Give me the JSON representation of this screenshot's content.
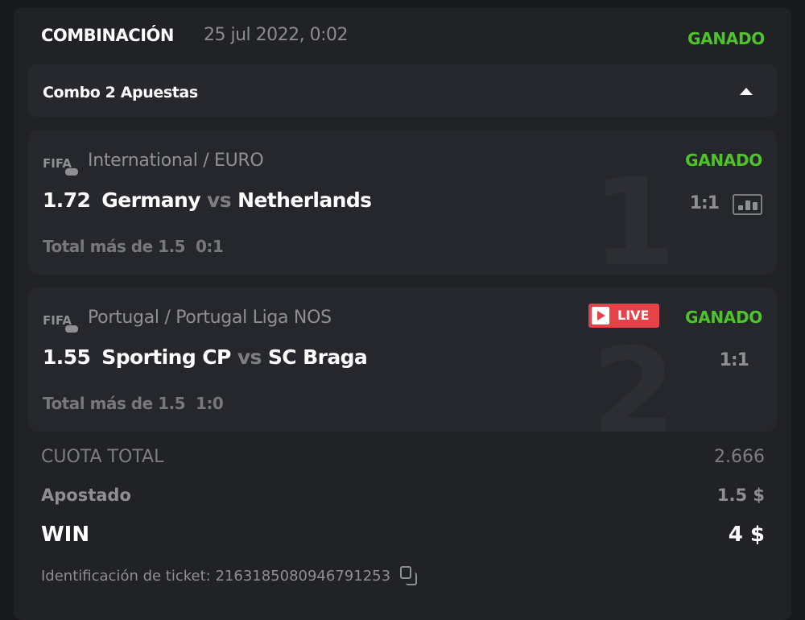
{
  "header": {
    "title": "COMBINACIÓN",
    "date": "25 jul 2022, 0:02",
    "status": "GANADO"
  },
  "combo": {
    "label": "Combo 2 Apuestas"
  },
  "bets": [
    {
      "index": "1",
      "sport_logo": "FIFA",
      "league": "International / EURO",
      "odds": "1.72",
      "home": "Germany",
      "vs": "vs",
      "away": "Netherlands",
      "market": "Total más de 1.5",
      "market_score": "0:1",
      "status": "GANADO",
      "score": "1:1",
      "live": false
    },
    {
      "index": "2",
      "sport_logo": "FIFA",
      "league": "Portugal / Portugal Liga NOS",
      "odds": "1.55",
      "home": "Sporting CP",
      "vs": "vs",
      "away": "SC Braga",
      "market": "Total más de 1.5",
      "market_score": "1:0",
      "status": "GANADO",
      "score": "1:1",
      "live": true,
      "live_label": "LIVE"
    }
  ],
  "summary": {
    "total_odds_label": "CUOTA TOTAL",
    "total_odds": "2.666",
    "staked_label": "Apostado",
    "staked": "1.5 $",
    "win_label": "WIN",
    "win": "4 $"
  },
  "ticket": {
    "label": "Identificación de ticket: 2163185080946791253"
  },
  "colors": {
    "win_green": "#4ec32a",
    "live_red": "#e5434a",
    "background": "#212226"
  }
}
